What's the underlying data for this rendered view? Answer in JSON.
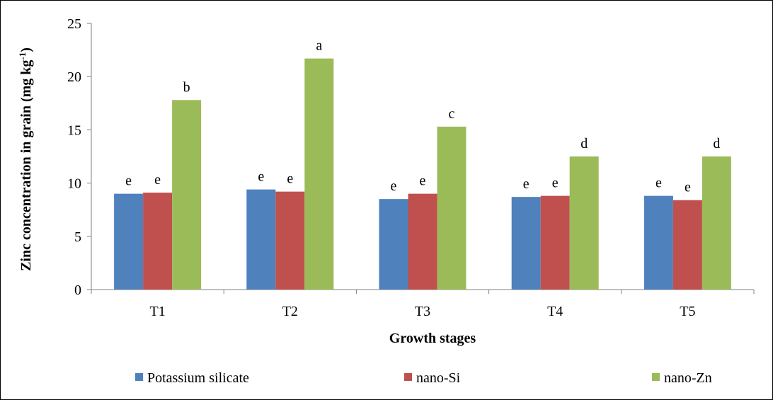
{
  "chart_data": {
    "type": "bar",
    "categories": [
      "T1",
      "T2",
      "T3",
      "T4",
      "T5"
    ],
    "series": [
      {
        "name": "Potassium silicate",
        "color": "#4F81BD",
        "values": [
          9.0,
          9.4,
          8.5,
          8.7,
          8.8
        ],
        "labels": [
          "e",
          "e",
          "e",
          "e",
          "e"
        ]
      },
      {
        "name": "nano-Si",
        "color": "#C0504D",
        "values": [
          9.1,
          9.2,
          9.0,
          8.8,
          8.4
        ],
        "labels": [
          "e",
          "e",
          "e",
          "e",
          "e"
        ]
      },
      {
        "name": "nano-Zn",
        "color": "#9BBB59",
        "values": [
          17.8,
          21.7,
          15.3,
          12.5,
          12.5
        ],
        "labels": [
          "b",
          "a",
          "c",
          "d",
          "d"
        ]
      }
    ],
    "xlabel": "Growth stages",
    "ylabel_main": "Zinc concentration in grain (mg kg",
    "ylabel_sup": "-1",
    "ylabel_close": ")",
    "ylim": [
      0,
      25
    ],
    "yticks": [
      "0",
      "5",
      "10",
      "15",
      "20",
      "25"
    ],
    "grid": false,
    "legend_position": "bottom"
  }
}
